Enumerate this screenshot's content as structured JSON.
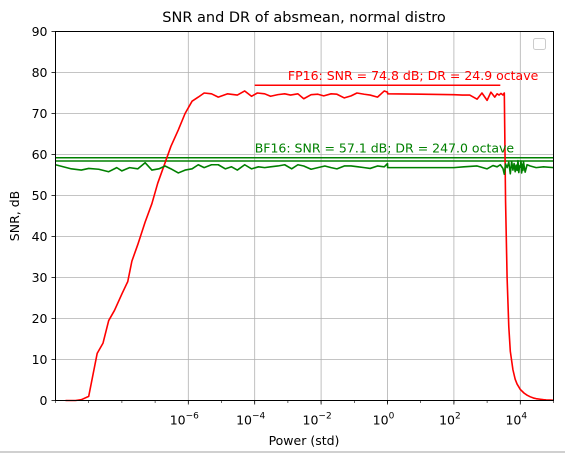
{
  "chart_data": {
    "type": "line",
    "title": "SNR and DR of absmean, normal distro",
    "xlabel": "Power (std)",
    "ylabel": "SNR, dB",
    "xscale": "log",
    "xlim": [
      1e-10,
      100000.0
    ],
    "ylim": [
      0,
      90
    ],
    "grid": true,
    "legend": "top-right (empty)",
    "xticks": [
      {
        "value": 1e-06,
        "base": "10",
        "exp": "−6"
      },
      {
        "value": 0.0001,
        "base": "10",
        "exp": "−4"
      },
      {
        "value": 0.01,
        "base": "10",
        "exp": "−2"
      },
      {
        "value": 1.0,
        "base": "10",
        "exp": "0"
      },
      {
        "value": 100.0,
        "base": "10",
        "exp": "2"
      },
      {
        "value": 10000.0,
        "base": "10",
        "exp": "4"
      }
    ],
    "yticks": [
      0,
      10,
      20,
      30,
      40,
      50,
      60,
      70,
      80,
      90
    ],
    "series": [
      {
        "color": "#ff0000",
        "x": [
          2e-10,
          4e-10,
          6e-10,
          1e-09,
          1.8e-09,
          2.7e-09,
          4e-09,
          6e-09,
          1e-08,
          1.5e-08,
          2e-08,
          3e-08,
          5e-08,
          8e-08,
          1.2e-07,
          2e-07,
          3e-07,
          5e-07,
          8e-07,
          1.3e-06,
          2e-06,
          3e-06,
          5e-06,
          8e-06,
          1.5e-05,
          3e-05,
          5e-05,
          8e-05,
          0.00012,
          0.0002,
          0.0003,
          0.0005,
          0.0008,
          0.0012,
          0.002,
          0.003,
          0.005,
          0.008,
          0.012,
          0.02,
          0.03,
          0.05,
          0.08,
          0.12,
          0.2,
          0.3,
          0.5,
          0.8,
          1.0,
          1.01,
          10,
          100,
          180,
          300,
          500,
          700,
          1000,
          1300,
          1700,
          2000,
          2300,
          2600,
          3000,
          3300,
          3600,
          4000,
          4500,
          5000,
          6000,
          7000,
          8000,
          10000,
          13000,
          16000,
          20000,
          25000,
          30000,
          40000,
          50000,
          60000,
          80000,
          100000
        ],
        "y": [
          0,
          0,
          0.2,
          1,
          11.5,
          14,
          19.5,
          22,
          26,
          29,
          34,
          38,
          43.5,
          48,
          53,
          58,
          62,
          66,
          70,
          73,
          74,
          75,
          74.8,
          74,
          74.8,
          74.5,
          75.5,
          74.2,
          75,
          74.8,
          74.2,
          74.6,
          74.8,
          74.5,
          74.8,
          73.6,
          74.6,
          74.7,
          74.3,
          74.8,
          74.7,
          73.8,
          74.3,
          75,
          74.7,
          74.5,
          74,
          75.5,
          75.2,
          74.8,
          74.7,
          74.6,
          74.5,
          74.5,
          73.5,
          75,
          73.2,
          75.2,
          74,
          74.8,
          74.5,
          74.9,
          74.5,
          75,
          48.5,
          30,
          18,
          12,
          7.5,
          5.2,
          4,
          2.7,
          1.8,
          1.3,
          0.9,
          0.6,
          0.45,
          0.3,
          0.2,
          0.15,
          0.1,
          0.05
        ]
      },
      {
        "color": "#008000",
        "x": [
          1e-10,
          3e-10,
          6e-10,
          1e-09,
          2e-09,
          4e-09,
          7e-09,
          1e-08,
          1.7e-08,
          3e-08,
          5e-08,
          8e-08,
          1.3e-07,
          2e-07,
          3e-07,
          5e-07,
          8e-07,
          1.3e-06,
          2e-06,
          3e-06,
          5e-06,
          8e-06,
          1.3e-05,
          2e-05,
          3e-05,
          5e-05,
          8e-05,
          0.00013,
          0.0002,
          0.0003,
          0.0005,
          0.0008,
          0.0013,
          0.002,
          0.003,
          0.005,
          0.008,
          0.013,
          0.02,
          0.03,
          0.05,
          0.08,
          0.13,
          0.2,
          0.3,
          0.5,
          0.8,
          1.0,
          1.01,
          10,
          100,
          200,
          500,
          1000,
          1500,
          2000,
          2500,
          3000,
          3300,
          3600,
          4000,
          4500,
          5000,
          5500,
          6000,
          6500,
          7000,
          7500,
          8000,
          8500,
          9000,
          9500,
          10000,
          10500,
          11000,
          11500,
          12000,
          12500,
          13000,
          14000,
          16000,
          20000,
          30000,
          50000,
          100000
        ],
        "y": [
          57.5,
          56.5,
          56.2,
          56.6,
          56.4,
          55.8,
          56.8,
          56,
          56.8,
          56.5,
          58,
          56.2,
          56.5,
          57.2,
          56.5,
          55.5,
          56.2,
          56.5,
          57.5,
          56.8,
          57.5,
          57.5,
          56.5,
          57,
          56.2,
          57.5,
          56.5,
          57,
          56.8,
          57,
          57.2,
          57.5,
          56.5,
          57.5,
          57.2,
          56.4,
          56.8,
          57.2,
          56.8,
          56.5,
          57.2,
          57.2,
          57,
          56.8,
          56.6,
          57.2,
          57,
          57.8,
          56.8,
          56.8,
          56.8,
          57,
          57.2,
          56.5,
          57.3,
          57,
          57.5,
          56.6,
          55.2,
          57.7,
          56.8,
          58.1,
          55.3,
          58.3,
          56.2,
          57.8,
          55.8,
          57.4,
          56.1,
          58.5,
          55.6,
          57.2,
          56.9,
          58.4,
          55.5,
          57.6,
          56.1,
          58.2,
          57.3,
          55.7,
          57.5,
          57.2,
          56.8,
          57,
          56.8
        ]
      }
    ],
    "reference_lines": [
      {
        "color": "#ff0000",
        "y": 76.9,
        "x_from": 0.0001,
        "x_to": 2500
      },
      {
        "color": "#008000",
        "y": 59.2,
        "x_from": 1e-10,
        "x_to": 100000.0
      },
      {
        "color": "#008000",
        "y": 58.4,
        "x_from": 1e-10,
        "x_to": 100000.0
      }
    ],
    "annotations": [
      {
        "text": "FP16: SNR = 74.8 dB; DR = 24.9 octave",
        "color": "#ff0000",
        "x": 0.001,
        "y": 78.2
      },
      {
        "text": "BF16: SNR = 57.1 dB; DR = 247.0 octave",
        "color": "#008000",
        "x": 0.0001,
        "y": 60.5
      }
    ]
  }
}
